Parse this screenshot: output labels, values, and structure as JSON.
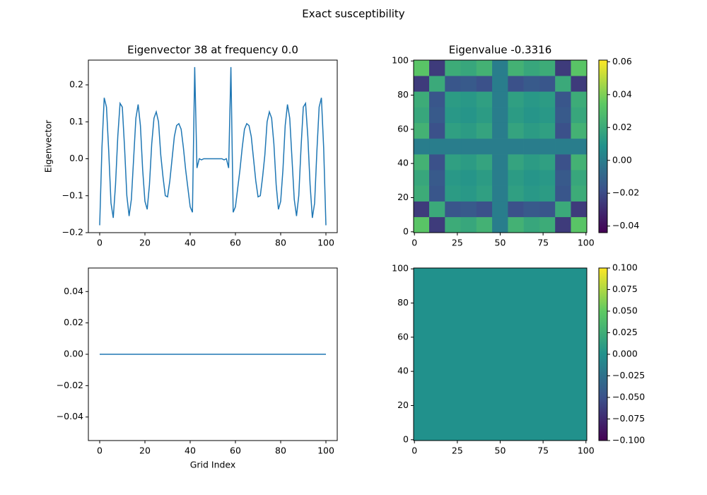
{
  "title": "Exact susceptibility",
  "chart_data": [
    {
      "type": "line",
      "title": "Eigenvector 38 at frequency 0.0",
      "y_label": "Eigenvector",
      "color": "#1f77b4",
      "x": [
        0,
        1,
        2,
        3,
        4,
        5,
        6,
        7,
        8,
        9,
        10,
        11,
        12,
        13,
        14,
        15,
        16,
        17,
        18,
        19,
        20,
        21,
        22,
        23,
        24,
        25,
        26,
        27,
        28,
        29,
        30,
        31,
        32,
        33,
        34,
        35,
        36,
        37,
        38,
        39,
        40,
        41,
        42,
        43,
        44,
        45,
        46,
        47,
        48,
        49,
        50,
        51,
        52,
        53,
        54,
        55,
        56,
        57,
        58,
        59,
        60,
        61,
        62,
        63,
        64,
        65,
        66,
        67,
        68,
        69,
        70,
        71,
        72,
        73,
        74,
        75,
        76,
        77,
        78,
        79,
        80,
        81,
        82,
        83,
        84,
        85,
        86,
        87,
        88,
        89,
        90,
        91,
        92,
        93,
        94,
        95,
        96,
        97,
        98,
        99,
        100
      ],
      "values": [
        -0.18,
        0.03,
        0.165,
        0.14,
        0.02,
        -0.12,
        -0.16,
        -0.07,
        0.06,
        0.15,
        0.14,
        0.03,
        -0.1,
        -0.155,
        -0.11,
        0.0,
        0.11,
        0.147,
        0.09,
        -0.03,
        -0.115,
        -0.137,
        -0.07,
        0.04,
        0.11,
        0.127,
        0.1,
        0.01,
        -0.05,
        -0.1,
        -0.103,
        -0.06,
        0.0,
        0.06,
        0.09,
        0.095,
        0.08,
        0.03,
        -0.03,
        -0.08,
        -0.13,
        -0.145,
        0.248,
        -0.025,
        0.0,
        -0.003,
        0,
        0,
        0,
        0,
        0,
        0,
        0,
        0,
        0,
        -0.003,
        0.0,
        -0.025,
        0.248,
        -0.145,
        -0.13,
        -0.08,
        -0.03,
        0.03,
        0.08,
        0.095,
        0.09,
        0.06,
        0.0,
        -0.06,
        -0.103,
        -0.1,
        -0.05,
        0.01,
        0.1,
        0.127,
        0.11,
        0.04,
        -0.07,
        -0.137,
        -0.115,
        -0.03,
        0.09,
        0.147,
        0.11,
        0.0,
        -0.11,
        -0.155,
        -0.1,
        0.03,
        0.14,
        0.15,
        0.06,
        -0.07,
        -0.16,
        -0.12,
        0.02,
        0.14,
        0.165,
        0.03,
        -0.18
      ],
      "xlim": [
        -5,
        105
      ],
      "ylim": [
        -0.2,
        0.267
      ],
      "xticks": [
        0,
        20,
        40,
        60,
        80,
        100
      ],
      "yticks": [
        {
          "value": -0.2,
          "label": "−0.2"
        },
        {
          "value": -0.1,
          "label": "−0.1"
        },
        {
          "value": 0,
          "label": "0.0"
        },
        0.1,
        0.2
      ]
    },
    {
      "type": "heatmap",
      "title": "Eigenvalue -0.3316",
      "cmap": "viridis",
      "values": [
        [
          0.0324,
          -0.0252,
          0.0207,
          0.0185,
          0.0234,
          0,
          0.0234,
          0.0185,
          0.0207,
          -0.0252,
          0.0324
        ],
        [
          -0.0252,
          0.0196,
          -0.0161,
          -0.0144,
          -0.0182,
          0,
          -0.0182,
          -0.0144,
          -0.0161,
          0.0196,
          -0.0252
        ],
        [
          0.0207,
          -0.0161,
          0.0132,
          0.0118,
          0.015,
          0,
          0.015,
          0.0118,
          0.0132,
          -0.0161,
          0.0207
        ],
        [
          0.0185,
          -0.0144,
          0.0118,
          0.0106,
          0.0134,
          0,
          0.0134,
          0.0106,
          0.0118,
          -0.0144,
          0.0185
        ],
        [
          0.0234,
          -0.0182,
          0.015,
          0.0134,
          0.0169,
          0,
          0.0169,
          0.0134,
          0.015,
          -0.0182,
          0.0234
        ],
        [
          0,
          0,
          0,
          0,
          0,
          0,
          0,
          0,
          0,
          0,
          0
        ],
        [
          0.0234,
          -0.0182,
          0.015,
          0.0134,
          0.0169,
          0,
          0.0169,
          0.0134,
          0.015,
          -0.0182,
          0.0234
        ],
        [
          0.0185,
          -0.0144,
          0.0118,
          0.0106,
          0.0134,
          0,
          0.0134,
          0.0106,
          0.0118,
          -0.0144,
          0.0185
        ],
        [
          0.0207,
          -0.0161,
          0.0132,
          0.0118,
          0.015,
          0,
          0.015,
          0.0118,
          0.0132,
          -0.0161,
          0.0207
        ],
        [
          -0.0252,
          0.0196,
          -0.0161,
          -0.0144,
          -0.0182,
          0,
          -0.0182,
          -0.0144,
          -0.0161,
          0.0196,
          -0.0252
        ],
        [
          0.0324,
          -0.0252,
          0.0207,
          0.0185,
          0.0234,
          0,
          0.0234,
          0.0185,
          0.0207,
          -0.0252,
          0.0324
        ]
      ],
      "xlim": [
        -0.5,
        100.5
      ],
      "ylim": [
        -0.5,
        100.5
      ],
      "xticks": [
        0,
        25,
        50,
        75,
        100
      ],
      "yticks": [
        0,
        20,
        40,
        60,
        80,
        100
      ],
      "colorbar": {
        "lim": [
          -0.044,
          0.061
        ],
        "ticks": [
          {
            "value": -0.04,
            "label": "−0.04"
          },
          {
            "value": -0.02,
            "label": "−0.02"
          },
          {
            "value": 0,
            "label": "0.00"
          },
          {
            "value": 0.02,
            "label": "0.02"
          },
          {
            "value": 0.04,
            "label": "0.04"
          },
          {
            "value": 0.06,
            "label": "0.06"
          }
        ]
      }
    },
    {
      "type": "line",
      "x_label": "Grid Index",
      "color": "#1f77b4",
      "x": [
        0,
        100
      ],
      "values": [
        0,
        0
      ],
      "xlim": [
        -5,
        105
      ],
      "ylim": [
        -0.055,
        0.055
      ],
      "xticks": [
        0,
        20,
        40,
        60,
        80,
        100
      ],
      "yticks": [
        {
          "value": -0.04,
          "label": "−0.04"
        },
        {
          "value": -0.02,
          "label": "−0.02"
        },
        {
          "value": 0,
          "label": "0.00"
        },
        {
          "value": 0.02,
          "label": "0.02"
        },
        {
          "value": 0.04,
          "label": "0.04"
        }
      ]
    },
    {
      "type": "heatmap",
      "cmap": "viridis",
      "values": [
        [
          0
        ]
      ],
      "xlim": [
        -0.5,
        100.5
      ],
      "ylim": [
        -0.5,
        100.5
      ],
      "xticks": [
        0,
        25,
        50,
        75,
        100
      ],
      "yticks": [
        0,
        20,
        40,
        60,
        80,
        100
      ],
      "colorbar": {
        "lim": [
          -0.1,
          0.1
        ],
        "ticks": [
          {
            "value": -0.1,
            "label": "−0.100"
          },
          {
            "value": -0.075,
            "label": "−0.075"
          },
          {
            "value": -0.05,
            "label": "−0.050"
          },
          {
            "value": -0.025,
            "label": "−0.025"
          },
          {
            "value": 0,
            "label": "0.000"
          },
          {
            "value": 0.025,
            "label": "0.025"
          },
          {
            "value": 0.05,
            "label": "0.050"
          },
          {
            "value": 0.075,
            "label": "0.075"
          },
          {
            "value": 0.1,
            "label": "0.100"
          }
        ]
      }
    }
  ]
}
